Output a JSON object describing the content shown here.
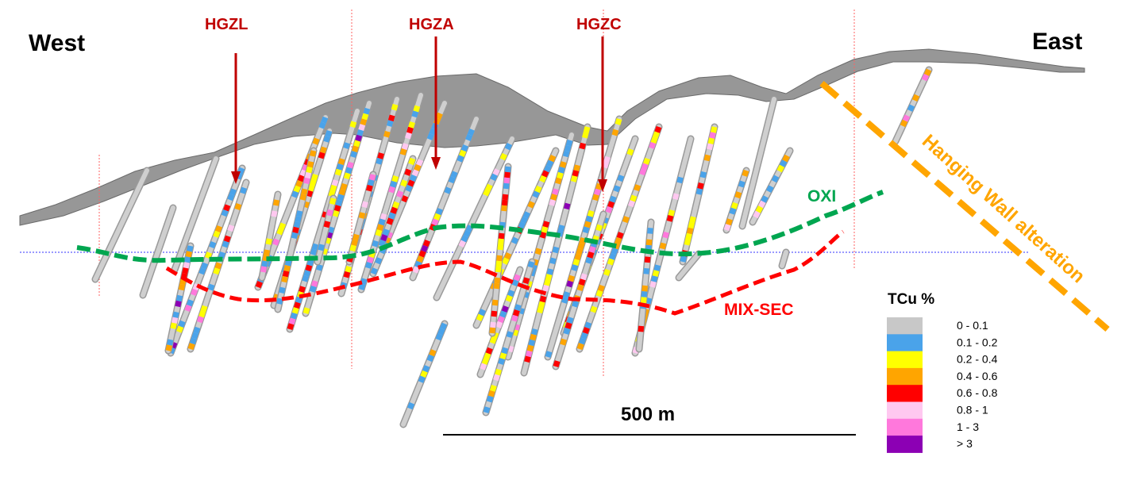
{
  "labels": {
    "west": "West",
    "east": "East",
    "zones": [
      "HGZL",
      "HGZA",
      "HGZC"
    ],
    "oxi": "OXI",
    "mix_sec": "MIX-SEC",
    "hanging_wall": "Hanging Wall alteration",
    "scale": "500 m"
  },
  "legend": {
    "title": "TCu %",
    "items": [
      {
        "label": "0 - 0.1",
        "color": "#c8c8c8"
      },
      {
        "label": "0.1 - 0.2",
        "color": "#4aa3ea"
      },
      {
        "label": "0.2 - 0.4",
        "color": "#ffff00"
      },
      {
        "label": "0.4 - 0.6",
        "color": "#ffa500"
      },
      {
        "label": "0.6 - 0.8",
        "color": "#ff0000"
      },
      {
        "label": "0.8 - 1",
        "color": "#ffc8f0"
      },
      {
        "label": "1 - 3",
        "color": "#ff78dc"
      },
      {
        "label": "> 3",
        "color": "#8c00b4"
      }
    ]
  },
  "colors": {
    "zone_arrow": "#c00000",
    "oxi_line": "#00a650",
    "mix_sec_line": "#ff0000",
    "hanging_wall_line": "#ffa500",
    "topography": "#8c8c8c",
    "section_lines": "#ff6060",
    "reference_line": "#3333ff"
  }
}
